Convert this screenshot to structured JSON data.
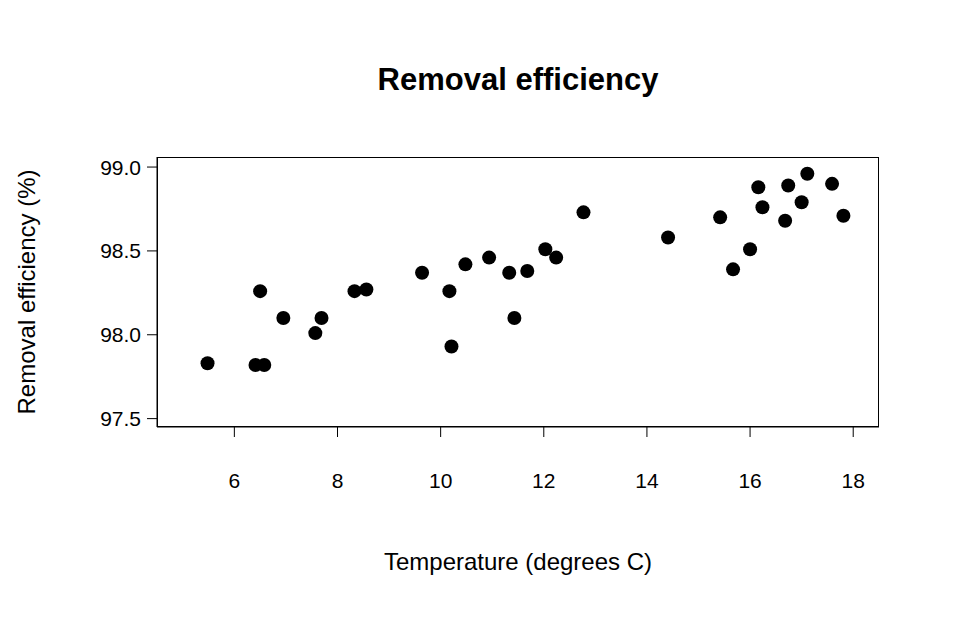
{
  "chart_data": {
    "type": "scatter",
    "title": "Removal efficiency",
    "x_label": "Temperature (degrees C)",
    "y_label": "Removal efficiency (%)",
    "x": [
      5.48,
      6.41,
      6.58,
      6.5,
      6.95,
      7.57,
      7.69,
      8.33,
      8.56,
      9.64,
      10.17,
      10.21,
      10.48,
      10.94,
      11.33,
      11.43,
      11.68,
      12.03,
      12.24,
      12.77,
      14.41,
      15.42,
      15.67,
      16.0,
      16.16,
      16.24,
      16.68,
      16.74,
      17.0,
      17.11,
      17.59,
      17.81
    ],
    "values": [
      97.83,
      97.82,
      97.82,
      98.26,
      98.1,
      98.01,
      98.1,
      98.26,
      98.27,
      98.37,
      98.26,
      97.93,
      98.42,
      98.46,
      98.37,
      98.1,
      98.38,
      98.51,
      98.46,
      98.73,
      98.58,
      98.7,
      98.39,
      98.51,
      98.88,
      98.76,
      98.68,
      98.89,
      98.79,
      98.96,
      98.9,
      98.71
    ],
    "color": "#000000",
    "marker": "circle",
    "xlim": [
      4.5,
      18.5
    ],
    "ylim": [
      97.45,
      99.06
    ],
    "xticks": [
      6,
      8,
      10,
      12,
      14,
      16,
      18
    ],
    "yticks": [
      97.5,
      {
        "value": 98,
        "label": "98.0"
      },
      98.5,
      {
        "value": 99,
        "label": "99.0"
      }
    ],
    "grid": false
  }
}
